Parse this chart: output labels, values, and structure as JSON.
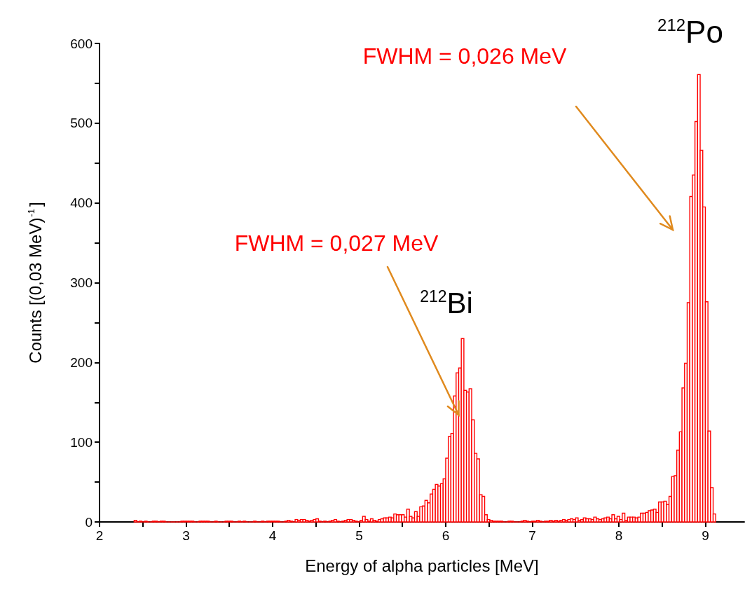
{
  "chart_data": {
    "type": "histogram",
    "xlabel": "Energy of alpha particles [MeV]",
    "ylabel": "Counts [(0,03 MeV)$^{-1}$]",
    "annotations": [
      "FWHM = 0,026 MeV",
      "$^{212}$Po",
      {
        "text": "FWHM = 0,027 MeV",
        "x": 6.15,
        "y": 134
      },
      "$^{212}$Bi"
    ],
    "color": "#ff0000",
    "xlim": [
      2,
      9.45
    ],
    "xticks": [
      2,
      {
        "value": 2.5,
        "label": null
      },
      3,
      {
        "value": 3.5,
        "label": null
      },
      4,
      {
        "value": 4.5,
        "label": null
      },
      5,
      {
        "value": 5.5,
        "label": null
      },
      6,
      {
        "value": 6.5,
        "label": null
      },
      7,
      {
        "value": 7.5,
        "label": null
      },
      8,
      {
        "value": 8.5,
        "label": null
      },
      9
    ],
    "ylim": [
      0,
      600
    ],
    "yticks": [
      0,
      {
        "value": 50,
        "label": null
      },
      100,
      {
        "value": 150,
        "label": null
      },
      200,
      {
        "value": 250,
        "label": null
      },
      300,
      {
        "value": 350,
        "label": null
      },
      400,
      {
        "value": 450,
        "label": null
      },
      500,
      {
        "value": 550,
        "label": null
      },
      600
    ],
    "bins": [
      2.4,
      2.43,
      2.46,
      2.49,
      2.52,
      2.55,
      2.58,
      2.61,
      2.64,
      2.67,
      2.7,
      2.73,
      2.76,
      2.79,
      2.82,
      2.85,
      2.88,
      2.91,
      2.94,
      2.97,
      3.0,
      3.03,
      3.06,
      3.09,
      3.12,
      3.15,
      3.18,
      3.21,
      3.24,
      3.27,
      3.3,
      3.33,
      3.36,
      3.39,
      3.42,
      3.45,
      3.48,
      3.51,
      3.54,
      3.57,
      3.6,
      3.63,
      3.66,
      3.69,
      3.72,
      3.75,
      3.78,
      3.81,
      3.84,
      3.87,
      3.9,
      3.93,
      3.96,
      3.99,
      4.02,
      4.05,
      4.08,
      4.11,
      4.14,
      4.17,
      4.2,
      4.23,
      4.26,
      4.29,
      4.32,
      4.35,
      4.38,
      4.41,
      4.44,
      4.47,
      4.5,
      4.53,
      4.56,
      4.59,
      4.62,
      4.65,
      4.68,
      4.71,
      4.74,
      4.77,
      4.8,
      4.83,
      4.86,
      4.89,
      4.92,
      4.95,
      4.98,
      5.01,
      5.04,
      5.07,
      5.1,
      5.13,
      5.16,
      5.19,
      5.22,
      5.25,
      5.28,
      5.31,
      5.34,
      5.37,
      5.4,
      5.43,
      5.46,
      5.49,
      5.52,
      5.55,
      5.58,
      5.61,
      5.64,
      5.67,
      5.7,
      5.73,
      5.76,
      5.79,
      5.82,
      5.85,
      5.88,
      5.91,
      5.94,
      5.97,
      6.0,
      6.03,
      6.06,
      6.09,
      6.12,
      6.15,
      6.18,
      6.21,
      6.24,
      6.27,
      6.3,
      6.33,
      6.36,
      6.39,
      6.42,
      6.45,
      6.48,
      6.51,
      6.54,
      6.57,
      6.6,
      6.63,
      6.66,
      6.69,
      6.72,
      6.75,
      6.78,
      6.81,
      6.84,
      6.87,
      6.9,
      6.93,
      6.96,
      6.99,
      7.02,
      7.05,
      7.08,
      7.11,
      7.14,
      7.17,
      7.2,
      7.23,
      7.26,
      7.29,
      7.32,
      7.35,
      7.38,
      7.41,
      7.44,
      7.47,
      7.5,
      7.53,
      7.56,
      7.59,
      7.62,
      7.65,
      7.68,
      7.71,
      7.74,
      7.77,
      7.8,
      7.83,
      7.86,
      7.89,
      7.92,
      7.95,
      7.98,
      8.01,
      8.04,
      8.07,
      8.1,
      8.13,
      8.16,
      8.19,
      8.22,
      8.25,
      8.28,
      8.31,
      8.34,
      8.37,
      8.4,
      8.43,
      8.46,
      8.49,
      8.52,
      8.55,
      8.58,
      8.61,
      8.64,
      8.67,
      8.7,
      8.73,
      8.76,
      8.79,
      8.82,
      8.85,
      8.88,
      8.91,
      8.94,
      8.97,
      9.0,
      9.03,
      9.06,
      9.09,
      9.12
    ],
    "values": [
      2,
      0,
      1,
      0,
      1,
      0,
      0,
      1,
      1,
      0,
      1,
      1,
      0,
      0,
      0,
      0,
      0,
      0,
      1,
      1,
      1,
      1,
      1,
      0,
      0,
      1,
      1,
      1,
      1,
      0,
      0,
      1,
      0,
      0,
      0,
      1,
      1,
      1,
      0,
      0,
      1,
      0,
      1,
      0,
      0,
      0,
      1,
      0,
      0,
      1,
      0,
      1,
      1,
      1,
      1,
      1,
      0,
      0,
      1,
      2,
      1,
      0,
      3,
      2,
      3,
      3,
      2,
      1,
      2,
      3,
      4,
      1,
      0,
      1,
      0,
      1,
      2,
      3,
      1,
      0,
      1,
      2,
      3,
      3,
      2,
      1,
      0,
      2,
      7,
      3,
      1,
      4,
      2,
      1,
      3,
      4,
      5,
      5,
      6,
      5,
      10,
      9,
      9,
      9,
      6,
      16,
      7,
      5,
      13,
      7,
      19,
      20,
      27,
      24,
      35,
      41,
      47,
      45,
      48,
      54,
      80,
      107,
      111,
      158,
      187,
      193,
      230,
      165,
      163,
      167,
      128,
      86,
      79,
      34,
      32,
      9,
      3,
      2,
      1,
      1,
      1,
      1,
      0,
      0,
      1,
      1,
      0,
      0,
      0,
      1,
      2,
      1,
      0,
      1,
      1,
      2,
      1,
      0,
      1,
      1,
      2,
      1,
      2,
      1,
      2,
      3,
      2,
      3,
      4,
      3,
      5,
      2,
      3,
      5,
      4,
      4,
      3,
      6,
      4,
      3,
      4,
      5,
      6,
      4,
      9,
      4,
      7,
      3,
      11,
      2,
      6,
      6,
      6,
      5,
      6,
      11,
      11,
      12,
      14,
      15,
      16,
      12,
      25,
      25,
      26,
      22,
      32,
      57,
      58,
      90,
      113,
      168,
      199,
      275,
      408,
      435,
      502,
      561,
      466,
      395,
      276,
      114,
      43,
      10
    ]
  }
}
